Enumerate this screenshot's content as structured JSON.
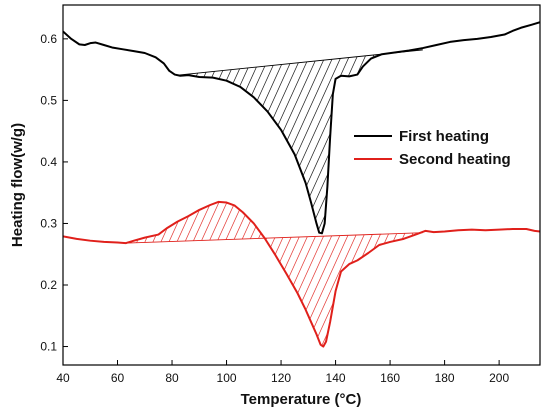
{
  "chart_data": {
    "type": "line",
    "title": "",
    "xlabel": "Temperature (°C)",
    "ylabel": "Heating flow(w/g)",
    "xlim": [
      40,
      215
    ],
    "ylim": [
      0.07,
      0.655
    ],
    "x_ticks": [
      40,
      60,
      80,
      100,
      120,
      140,
      160,
      180,
      200
    ],
    "y_ticks": [
      0.1,
      0.2,
      0.3,
      0.4,
      0.5,
      0.6
    ],
    "grid": false,
    "legend_position": "right-middle",
    "series": [
      {
        "name": "First heating",
        "color": "#000000",
        "hatched_region": {
          "baseline_start": [
            82,
            0.541
          ],
          "baseline_end": [
            172,
            0.582
          ]
        },
        "points": [
          [
            40,
            0.612
          ],
          [
            43,
            0.6
          ],
          [
            46,
            0.591
          ],
          [
            48,
            0.59
          ],
          [
            50,
            0.593
          ],
          [
            52,
            0.594
          ],
          [
            55,
            0.59
          ],
          [
            58,
            0.586
          ],
          [
            62,
            0.583
          ],
          [
            66,
            0.58
          ],
          [
            70,
            0.577
          ],
          [
            74,
            0.57
          ],
          [
            77,
            0.56
          ],
          [
            79,
            0.548
          ],
          [
            81,
            0.542
          ],
          [
            83,
            0.54
          ],
          [
            86,
            0.541
          ],
          [
            90,
            0.538
          ],
          [
            95,
            0.537
          ],
          [
            100,
            0.532
          ],
          [
            105,
            0.522
          ],
          [
            110,
            0.505
          ],
          [
            115,
            0.482
          ],
          [
            120,
            0.452
          ],
          [
            125,
            0.412
          ],
          [
            129,
            0.366
          ],
          [
            131,
            0.334
          ],
          [
            133,
            0.3
          ],
          [
            134,
            0.285
          ],
          [
            135,
            0.284
          ],
          [
            136,
            0.3
          ],
          [
            137,
            0.36
          ],
          [
            138,
            0.44
          ],
          [
            139,
            0.51
          ],
          [
            140,
            0.535
          ],
          [
            142,
            0.54
          ],
          [
            145,
            0.539
          ],
          [
            148,
            0.542
          ],
          [
            150,
            0.555
          ],
          [
            153,
            0.568
          ],
          [
            157,
            0.575
          ],
          [
            162,
            0.578
          ],
          [
            167,
            0.581
          ],
          [
            172,
            0.585
          ],
          [
            177,
            0.59
          ],
          [
            182,
            0.595
          ],
          [
            187,
            0.598
          ],
          [
            192,
            0.6
          ],
          [
            197,
            0.603
          ],
          [
            202,
            0.607
          ],
          [
            205,
            0.613
          ],
          [
            208,
            0.618
          ],
          [
            212,
            0.623
          ],
          [
            215,
            0.627
          ]
        ]
      },
      {
        "name": "Second heating",
        "color": "#e0201b",
        "hatched_region": {
          "baseline_start": [
            62,
            0.268
          ],
          "baseline_end": [
            172,
            0.285
          ]
        },
        "points": [
          [
            40,
            0.279
          ],
          [
            45,
            0.275
          ],
          [
            50,
            0.272
          ],
          [
            55,
            0.27
          ],
          [
            60,
            0.269
          ],
          [
            63,
            0.268
          ],
          [
            66,
            0.272
          ],
          [
            70,
            0.277
          ],
          [
            75,
            0.282
          ],
          [
            78,
            0.292
          ],
          [
            82,
            0.303
          ],
          [
            86,
            0.312
          ],
          [
            90,
            0.322
          ],
          [
            94,
            0.33
          ],
          [
            97,
            0.335
          ],
          [
            100,
            0.334
          ],
          [
            103,
            0.329
          ],
          [
            106,
            0.318
          ],
          [
            110,
            0.3
          ],
          [
            114,
            0.276
          ],
          [
            118,
            0.248
          ],
          [
            122,
            0.218
          ],
          [
            126,
            0.187
          ],
          [
            129,
            0.16
          ],
          [
            131,
            0.14
          ],
          [
            133,
            0.12
          ],
          [
            134.5,
            0.103
          ],
          [
            135.5,
            0.1
          ],
          [
            136.5,
            0.108
          ],
          [
            138,
            0.14
          ],
          [
            140,
            0.19
          ],
          [
            142,
            0.222
          ],
          [
            145,
            0.234
          ],
          [
            148,
            0.24
          ],
          [
            152,
            0.252
          ],
          [
            156,
            0.265
          ],
          [
            160,
            0.27
          ],
          [
            165,
            0.275
          ],
          [
            170,
            0.283
          ],
          [
            173,
            0.288
          ],
          [
            176,
            0.286
          ],
          [
            180,
            0.287
          ],
          [
            185,
            0.289
          ],
          [
            190,
            0.29
          ],
          [
            195,
            0.289
          ],
          [
            200,
            0.29
          ],
          [
            205,
            0.291
          ],
          [
            210,
            0.291
          ],
          [
            213,
            0.288
          ],
          [
            215,
            0.287
          ]
        ]
      }
    ]
  }
}
